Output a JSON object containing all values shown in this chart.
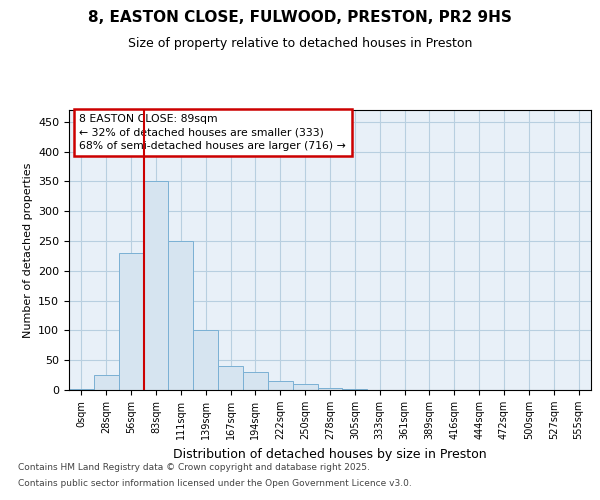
{
  "title": "8, EASTON CLOSE, FULWOOD, PRESTON, PR2 9HS",
  "subtitle": "Size of property relative to detached houses in Preston",
  "xlabel": "Distribution of detached houses by size in Preston",
  "ylabel": "Number of detached properties",
  "bar_labels": [
    "0sqm",
    "28sqm",
    "56sqm",
    "83sqm",
    "111sqm",
    "139sqm",
    "167sqm",
    "194sqm",
    "222sqm",
    "250sqm",
    "278sqm",
    "305sqm",
    "333sqm",
    "361sqm",
    "389sqm",
    "416sqm",
    "444sqm",
    "472sqm",
    "500sqm",
    "527sqm",
    "555sqm"
  ],
  "bar_values": [
    2,
    25,
    230,
    350,
    250,
    100,
    40,
    30,
    15,
    10,
    4,
    1,
    0,
    0,
    0,
    0,
    0,
    0,
    0,
    0,
    0
  ],
  "bar_color": "#d6e4f0",
  "bar_edgecolor": "#7ab0d4",
  "vline_position": 2.5,
  "annotation_title": "8 EASTON CLOSE: 89sqm",
  "annotation_line1": "← 32% of detached houses are smaller (333)",
  "annotation_line2": "68% of semi-detached houses are larger (716) →",
  "annotation_box_color": "#ffffff",
  "annotation_box_edgecolor": "#cc0000",
  "vline_color": "#cc0000",
  "ylim": [
    0,
    470
  ],
  "yticks": [
    0,
    50,
    100,
    150,
    200,
    250,
    300,
    350,
    400,
    450
  ],
  "footnote1": "Contains HM Land Registry data © Crown copyright and database right 2025.",
  "footnote2": "Contains public sector information licensed under the Open Government Licence v3.0.",
  "fig_background_color": "#ffffff",
  "plot_bg_color": "#e8f0f8",
  "grid_color": "#b8cfe0"
}
